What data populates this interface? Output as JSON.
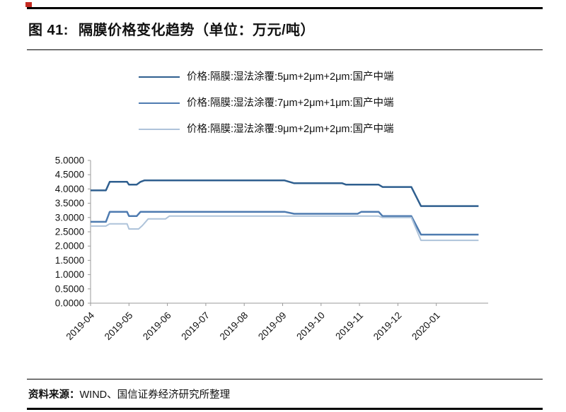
{
  "header": {
    "figure_label": "图 41:",
    "title": "隔膜价格变化趋势（单位：万元/吨）"
  },
  "chart_data": {
    "type": "line",
    "title": "隔膜价格变化趋势（单位：万元/吨）",
    "unit": "万元/吨",
    "grid": false,
    "legend_position": "top",
    "x_axis": {
      "range": [
        0,
        10.35
      ],
      "tick_positions": [
        0,
        1,
        2,
        3,
        4,
        5,
        6,
        7,
        8,
        9
      ],
      "tick_labels": [
        "2019-04",
        "2019-05",
        "2019-06",
        "2019-07",
        "2019-08",
        "2019-09",
        "2019-10",
        "2019-11",
        "2019-12",
        "2020-01"
      ]
    },
    "y_axis": {
      "range": [
        0,
        5
      ],
      "tick_positions": [
        0,
        0.5,
        1,
        1.5,
        2,
        2.5,
        3,
        3.5,
        4,
        4.5,
        5
      ],
      "tick_labels": [
        "0.0000",
        "0.5000",
        "1.0000",
        "1.5000",
        "2.0000",
        "2.5000",
        "3.0000",
        "3.5000",
        "4.0000",
        "4.5000",
        "5.0000"
      ]
    },
    "series": [
      {
        "name": "价格:隔膜:湿法涂覆:5μm+2μm+2μm:国产中端",
        "color": "#2f5f8f",
        "stroke_width": 2.5,
        "points": [
          [
            0,
            3.95
          ],
          [
            0.4,
            3.95
          ],
          [
            0.5,
            4.25
          ],
          [
            0.95,
            4.25
          ],
          [
            1.0,
            4.15
          ],
          [
            1.2,
            4.15
          ],
          [
            1.3,
            4.25
          ],
          [
            1.4,
            4.3
          ],
          [
            5.05,
            4.3
          ],
          [
            5.3,
            4.2
          ],
          [
            6.55,
            4.2
          ],
          [
            6.65,
            4.15
          ],
          [
            7.5,
            4.15
          ],
          [
            7.6,
            4.07
          ],
          [
            8.35,
            4.07
          ],
          [
            8.6,
            3.4
          ],
          [
            10.1,
            3.4
          ]
        ]
      },
      {
        "name": "价格:隔膜:湿法涂覆:7μm+2μm+1μm:国产中端",
        "color": "#4e7bb0",
        "stroke_width": 2.5,
        "points": [
          [
            0,
            2.85
          ],
          [
            0.4,
            2.85
          ],
          [
            0.5,
            3.2
          ],
          [
            0.95,
            3.2
          ],
          [
            1.0,
            3.05
          ],
          [
            1.2,
            3.05
          ],
          [
            1.3,
            3.2
          ],
          [
            5.05,
            3.2
          ],
          [
            5.3,
            3.13
          ],
          [
            6.95,
            3.13
          ],
          [
            7.05,
            3.2
          ],
          [
            7.5,
            3.2
          ],
          [
            7.6,
            3.05
          ],
          [
            8.35,
            3.05
          ],
          [
            8.6,
            2.4
          ],
          [
            10.1,
            2.4
          ]
        ]
      },
      {
        "name": "价格:隔膜:湿法涂覆:9μm+2μm+2μm:国产中端",
        "color": "#aec3da",
        "stroke_width": 2,
        "points": [
          [
            0,
            2.7
          ],
          [
            0.4,
            2.7
          ],
          [
            0.5,
            2.78
          ],
          [
            0.95,
            2.78
          ],
          [
            1.0,
            2.6
          ],
          [
            1.25,
            2.6
          ],
          [
            1.35,
            2.72
          ],
          [
            1.5,
            2.95
          ],
          [
            1.95,
            2.95
          ],
          [
            2.05,
            3.05
          ],
          [
            7.5,
            3.05
          ],
          [
            7.6,
            3.0
          ],
          [
            8.35,
            3.0
          ],
          [
            8.6,
            2.2
          ],
          [
            10.1,
            2.2
          ]
        ]
      }
    ]
  },
  "footer": {
    "source_label": "资料来源：",
    "source_text": "WIND、国信证券经济研究所整理"
  }
}
